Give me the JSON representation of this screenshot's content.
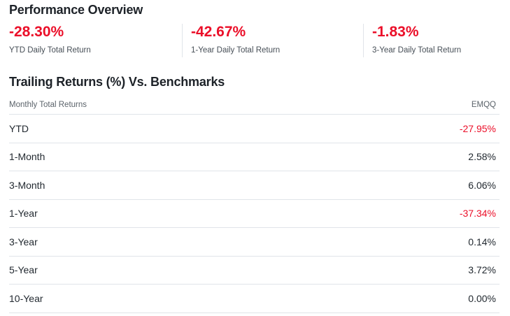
{
  "performance_overview": {
    "title": "Performance Overview",
    "stats": [
      {
        "value": "-28.30%",
        "label": "YTD Daily Total Return",
        "tone": "neg"
      },
      {
        "value": "-42.67%",
        "label": "1-Year Daily Total Return",
        "tone": "neg"
      },
      {
        "value": "-1.83%",
        "label": "3-Year Daily Total Return",
        "tone": "neg"
      }
    ]
  },
  "trailing_returns": {
    "title": "Trailing Returns (%) Vs. Benchmarks",
    "header": {
      "period": "Monthly Total Returns",
      "fund": "EMQQ"
    },
    "rows": [
      {
        "period": "YTD",
        "value": "-27.95%",
        "tone": "neg"
      },
      {
        "period": "1-Month",
        "value": "2.58%",
        "tone": "pos"
      },
      {
        "period": "3-Month",
        "value": "6.06%",
        "tone": "pos"
      },
      {
        "period": "1-Year",
        "value": "-37.34%",
        "tone": "neg"
      },
      {
        "period": "3-Year",
        "value": "0.14%",
        "tone": "pos"
      },
      {
        "period": "5-Year",
        "value": "3.72%",
        "tone": "pos"
      },
      {
        "period": "10-Year",
        "value": "0.00%",
        "tone": "pos"
      }
    ]
  },
  "colors": {
    "negative": "#eb0f29",
    "neutral_text": "#232a31",
    "divider": "#e0e4e9"
  }
}
